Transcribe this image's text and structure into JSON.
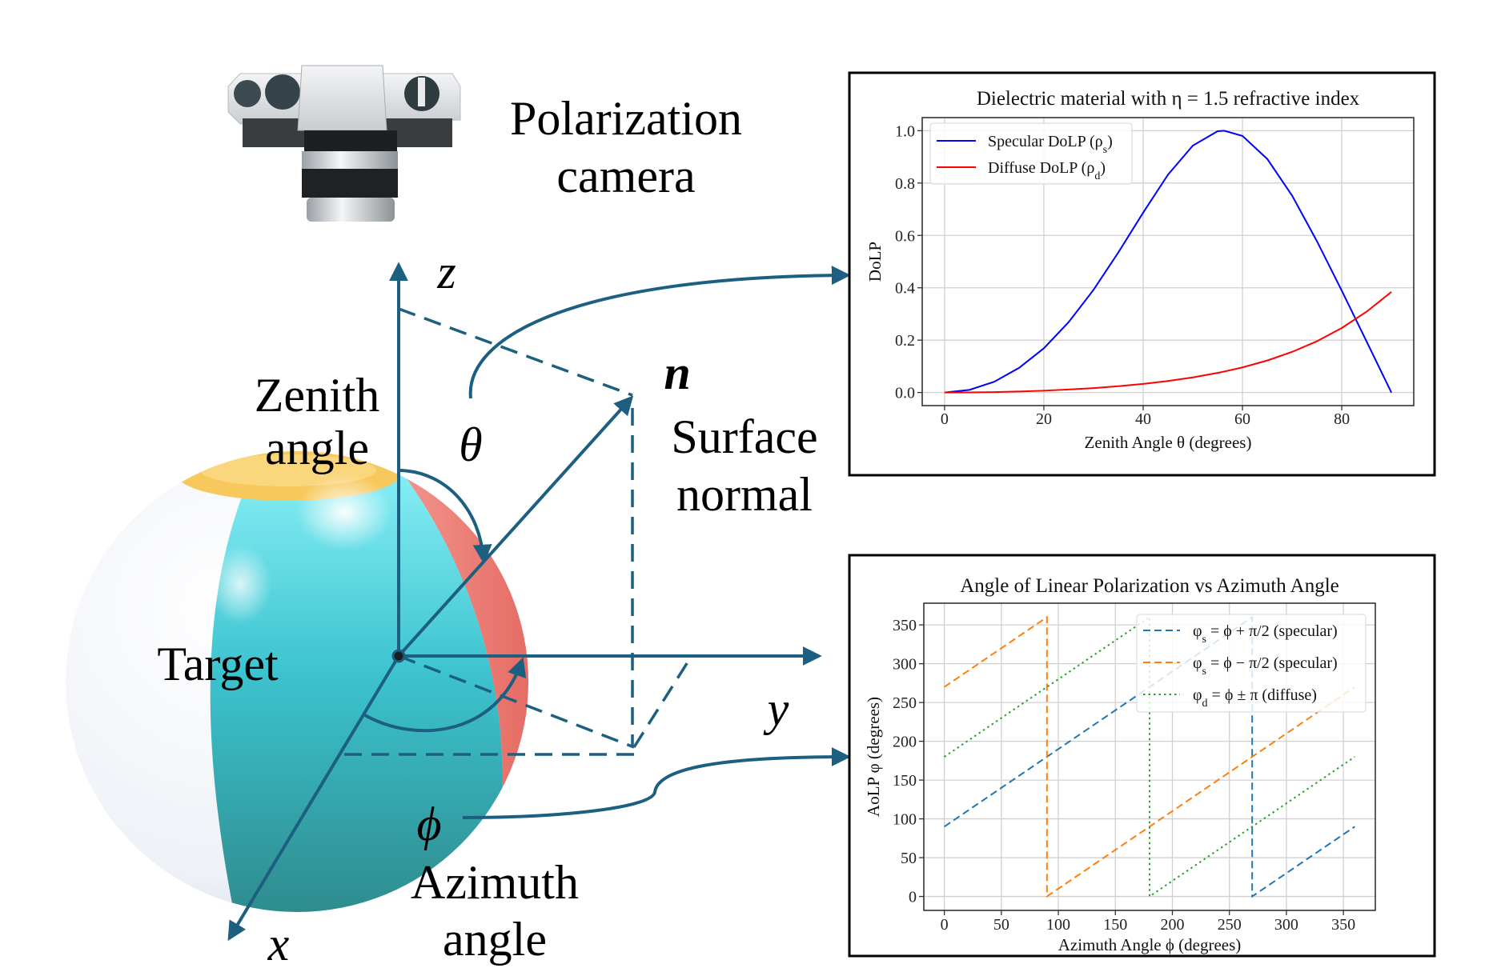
{
  "diagram": {
    "camera_label": [
      "Polarization",
      "camera"
    ],
    "zenith_label": [
      "Zenith",
      "angle"
    ],
    "zenith_symbol": "θ",
    "normal_symbol": "n",
    "normal_label": [
      "Surface",
      "normal"
    ],
    "target_label": "Target",
    "axis_z": "z",
    "axis_y": "y",
    "axis_x": "x",
    "azimuth_symbol": "ϕ",
    "azimuth_label": [
      "Azimuth",
      "angle"
    ],
    "colors": {
      "arrow": "#1d5f80",
      "teal": "#3cc3cf",
      "red_band": "#ee7b73",
      "yellow_cap": "#f7c95c"
    },
    "icons": [
      "polarization-camera-icon",
      "beach-ball-target-icon"
    ]
  },
  "chart_data": [
    {
      "type": "line",
      "title": "Dielectric material with η = 1.5 refractive index",
      "xlabel": "Zenith Angle θ (degrees)",
      "ylabel": "DoLP",
      "xlim": [
        -4.5,
        94.5
      ],
      "ylim": [
        -0.05,
        1.05
      ],
      "xticks": [
        0,
        20,
        40,
        60,
        80
      ],
      "yticks": [
        0.0,
        0.2,
        0.4,
        0.6,
        0.8,
        1.0
      ],
      "ytick_labels": [
        "0.0",
        "0.2",
        "0.4",
        "0.6",
        "0.8",
        "1.0"
      ],
      "grid": true,
      "legend_position": "upper-left",
      "x": [
        0,
        5,
        10,
        15,
        20,
        25,
        30,
        35,
        40,
        45,
        50,
        55,
        56.31,
        60,
        65,
        70,
        75,
        80,
        85,
        90
      ],
      "series": [
        {
          "name": "Specular DoLP (ρ_s)",
          "color": "#0000ff",
          "style": "solid",
          "values": [
            0,
            0.01,
            0.041,
            0.094,
            0.169,
            0.269,
            0.392,
            0.535,
            0.687,
            0.832,
            0.943,
            0.998,
            1.0,
            0.98,
            0.892,
            0.752,
            0.578,
            0.389,
            0.195,
            0
          ]
        },
        {
          "name": "Diffuse DoLP (ρ_d)",
          "color": "#ff0000",
          "style": "solid",
          "values": [
            0,
            0.0004,
            0.0017,
            0.0039,
            0.0071,
            0.0114,
            0.017,
            0.0241,
            0.0329,
            0.044,
            0.0577,
            0.0748,
            0.08,
            0.0959,
            0.1223,
            0.1551,
            0.1958,
            0.2464,
            0.3087,
            0.3843
          ]
        }
      ]
    },
    {
      "type": "line",
      "title": "Angle of Linear Polarization vs Azimuth Angle",
      "xlabel": "Azimuth Angle ϕ (degrees)",
      "ylabel": "AoLP φ (degrees)",
      "xlim": [
        -18,
        378
      ],
      "ylim": [
        -18,
        378
      ],
      "xticks": [
        0,
        50,
        100,
        150,
        200,
        250,
        300,
        350
      ],
      "yticks": [
        0,
        50,
        100,
        150,
        200,
        250,
        300,
        350
      ],
      "grid": true,
      "legend_position": "upper-right",
      "series": [
        {
          "name": "φ_s = ϕ + π/2 (specular)",
          "color": "#1f77b4",
          "style": "dashed",
          "points": [
            [
              0,
              90
            ],
            [
              270,
              360
            ],
            [
              270,
              0
            ],
            [
              360,
              90
            ]
          ]
        },
        {
          "name": "φ_s = ϕ − π/2 (specular)",
          "color": "#ff7f0e",
          "style": "dashed",
          "points": [
            [
              0,
              270
            ],
            [
              90,
              360
            ],
            [
              90,
              0
            ],
            [
              360,
              270
            ]
          ]
        },
        {
          "name": "φ_d = ϕ ± π (diffuse)",
          "color": "#2ca02c",
          "style": "dotted",
          "points": [
            [
              0,
              180
            ],
            [
              180,
              360
            ],
            [
              180,
              0
            ],
            [
              360,
              180
            ]
          ]
        }
      ]
    }
  ]
}
